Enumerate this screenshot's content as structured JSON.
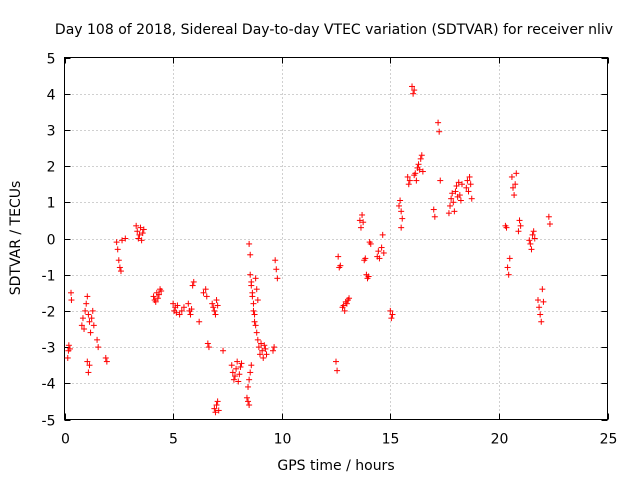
{
  "chart_data": {
    "type": "scatter",
    "title": "Day 108 of 2018, Sidereal Day-to-day VTEC variation (SDTVAR) for receiver nliv",
    "xlabel": "GPS time / hours",
    "ylabel": "SDTVAR / TECUs",
    "xlim": [
      0,
      25
    ],
    "ylim": [
      -5,
      5
    ],
    "grid": true,
    "marker": "+",
    "color": "#ff0000",
    "x_ticks": [
      "0",
      "5",
      "10",
      "15",
      "20",
      "25"
    ],
    "y_ticks": [
      "-5",
      "-4",
      "-3",
      "-2",
      "-1",
      "0",
      "1",
      "2",
      "3",
      "4",
      "5"
    ],
    "series": [
      {
        "name": "SDTVAR",
        "points": [
          [
            0.15,
            -3.3
          ],
          [
            0.18,
            -3.1
          ],
          [
            0.2,
            -2.95
          ],
          [
            0.25,
            -3.05
          ],
          [
            0.3,
            -1.5
          ],
          [
            0.32,
            -1.7
          ],
          [
            0.8,
            -2.4
          ],
          [
            0.85,
            -2.2
          ],
          [
            0.9,
            -2.5
          ],
          [
            0.95,
            -2.0
          ],
          [
            1.0,
            -1.8
          ],
          [
            1.05,
            -1.6
          ],
          [
            1.1,
            -2.1
          ],
          [
            1.15,
            -2.3
          ],
          [
            1.2,
            -2.6
          ],
          [
            1.25,
            -2.2
          ],
          [
            1.3,
            -2.0
          ],
          [
            1.35,
            -2.4
          ],
          [
            1.05,
            -3.4
          ],
          [
            1.1,
            -3.7
          ],
          [
            1.15,
            -3.5
          ],
          [
            1.5,
            -2.8
          ],
          [
            1.55,
            -3.0
          ],
          [
            1.9,
            -3.3
          ],
          [
            1.95,
            -3.4
          ],
          [
            2.4,
            -0.1
          ],
          [
            2.45,
            -0.3
          ],
          [
            2.5,
            -0.6
          ],
          [
            2.55,
            -0.8
          ],
          [
            2.6,
            -0.9
          ],
          [
            2.65,
            -0.05
          ],
          [
            2.8,
            0.0
          ],
          [
            3.3,
            0.35
          ],
          [
            3.35,
            0.2
          ],
          [
            3.4,
            0.0
          ],
          [
            3.45,
            0.1
          ],
          [
            3.5,
            0.3
          ],
          [
            3.55,
            -0.05
          ],
          [
            3.6,
            0.15
          ],
          [
            3.65,
            0.25
          ],
          [
            4.1,
            -1.6
          ],
          [
            4.15,
            -1.7
          ],
          [
            4.2,
            -1.75
          ],
          [
            4.25,
            -1.5
          ],
          [
            4.3,
            -1.65
          ],
          [
            4.35,
            -1.55
          ],
          [
            4.4,
            -1.4
          ],
          [
            4.45,
            -1.45
          ],
          [
            5.0,
            -1.8
          ],
          [
            5.05,
            -2.0
          ],
          [
            5.1,
            -1.9
          ],
          [
            5.15,
            -2.05
          ],
          [
            5.2,
            -1.85
          ],
          [
            5.3,
            -2.1
          ],
          [
            5.4,
            -2.0
          ],
          [
            5.5,
            -1.9
          ],
          [
            5.7,
            -1.8
          ],
          [
            5.75,
            -2.0
          ],
          [
            5.8,
            -2.1
          ],
          [
            5.85,
            -1.95
          ],
          [
            5.9,
            -1.3
          ],
          [
            5.95,
            -1.2
          ],
          [
            6.2,
            -2.3
          ],
          [
            6.4,
            -1.5
          ],
          [
            6.5,
            -1.4
          ],
          [
            6.55,
            -1.6
          ],
          [
            6.6,
            -2.9
          ],
          [
            6.65,
            -3.0
          ],
          [
            6.8,
            -1.8
          ],
          [
            6.85,
            -1.9
          ],
          [
            6.9,
            -2.0
          ],
          [
            6.95,
            -2.1
          ],
          [
            7.0,
            -1.7
          ],
          [
            7.05,
            -1.85
          ],
          [
            6.9,
            -4.7
          ],
          [
            6.95,
            -4.8
          ],
          [
            7.0,
            -4.6
          ],
          [
            7.05,
            -4.5
          ],
          [
            7.1,
            -4.75
          ],
          [
            7.3,
            -3.1
          ],
          [
            7.7,
            -3.5
          ],
          [
            7.75,
            -3.7
          ],
          [
            7.8,
            -3.9
          ],
          [
            7.85,
            -3.8
          ],
          [
            7.9,
            -3.6
          ],
          [
            7.95,
            -3.4
          ],
          [
            8.0,
            -3.95
          ],
          [
            8.05,
            -3.75
          ],
          [
            8.1,
            -3.55
          ],
          [
            8.15,
            -3.45
          ],
          [
            8.4,
            -4.4
          ],
          [
            8.45,
            -4.5
          ],
          [
            8.5,
            -4.6
          ],
          [
            8.45,
            -4.1
          ],
          [
            8.5,
            -3.9
          ],
          [
            8.55,
            -3.7
          ],
          [
            8.6,
            -3.5
          ],
          [
            8.5,
            -0.15
          ],
          [
            8.55,
            -0.45
          ],
          [
            8.55,
            -1.0
          ],
          [
            8.6,
            -1.2
          ],
          [
            8.65,
            -1.5
          ],
          [
            8.7,
            -1.8
          ],
          [
            8.75,
            -2.1
          ],
          [
            8.8,
            -2.4
          ],
          [
            8.85,
            -2.6
          ],
          [
            8.9,
            -2.8
          ],
          [
            8.95,
            -3.0
          ],
          [
            9.0,
            -3.2
          ],
          [
            9.05,
            -2.9
          ],
          [
            9.1,
            -3.1
          ],
          [
            9.15,
            -3.3
          ],
          [
            9.2,
            -2.95
          ],
          [
            9.25,
            -3.05
          ],
          [
            9.3,
            -3.2
          ],
          [
            8.6,
            -1.3
          ],
          [
            8.65,
            -1.6
          ],
          [
            8.7,
            -2.0
          ],
          [
            8.75,
            -2.3
          ],
          [
            8.8,
            -1.1
          ],
          [
            8.85,
            -1.4
          ],
          [
            8.9,
            -1.7
          ],
          [
            9.6,
            -3.1
          ],
          [
            9.65,
            -3.0
          ],
          [
            9.7,
            -0.6
          ],
          [
            9.75,
            -0.85
          ],
          [
            9.8,
            -1.1
          ],
          [
            12.5,
            -3.4
          ],
          [
            12.55,
            -3.65
          ],
          [
            12.6,
            -0.5
          ],
          [
            12.65,
            -0.8
          ],
          [
            12.7,
            -0.75
          ],
          [
            12.8,
            -1.9
          ],
          [
            12.85,
            -1.85
          ],
          [
            12.9,
            -2.0
          ],
          [
            12.95,
            -1.75
          ],
          [
            13.0,
            -1.8
          ],
          [
            13.05,
            -1.7
          ],
          [
            13.1,
            -1.65
          ],
          [
            13.6,
            0.5
          ],
          [
            13.65,
            0.3
          ],
          [
            13.7,
            0.65
          ],
          [
            13.75,
            0.45
          ],
          [
            13.8,
            -0.6
          ],
          [
            13.85,
            -0.55
          ],
          [
            13.9,
            -1.0
          ],
          [
            13.95,
            -1.1
          ],
          [
            14.0,
            -1.05
          ],
          [
            14.05,
            -0.1
          ],
          [
            14.1,
            -0.15
          ],
          [
            14.4,
            -0.5
          ],
          [
            14.45,
            -0.35
          ],
          [
            14.5,
            -0.55
          ],
          [
            14.6,
            -0.25
          ],
          [
            14.65,
            0.1
          ],
          [
            14.7,
            -0.4
          ],
          [
            15.0,
            -2.0
          ],
          [
            15.05,
            -2.2
          ],
          [
            15.1,
            -2.1
          ],
          [
            15.4,
            0.9
          ],
          [
            15.45,
            1.05
          ],
          [
            15.5,
            0.75
          ],
          [
            15.5,
            0.3
          ],
          [
            15.55,
            0.55
          ],
          [
            15.8,
            1.7
          ],
          [
            15.85,
            1.5
          ],
          [
            15.9,
            1.6
          ],
          [
            16.0,
            4.2
          ],
          [
            16.05,
            4.0
          ],
          [
            16.1,
            4.1
          ],
          [
            16.1,
            1.75
          ],
          [
            16.15,
            1.8
          ],
          [
            16.2,
            1.6
          ],
          [
            16.25,
            1.95
          ],
          [
            16.3,
            2.05
          ],
          [
            16.35,
            1.9
          ],
          [
            16.4,
            2.2
          ],
          [
            16.45,
            2.3
          ],
          [
            16.5,
            1.85
          ],
          [
            17.0,
            0.8
          ],
          [
            17.05,
            0.6
          ],
          [
            17.2,
            3.2
          ],
          [
            17.25,
            2.95
          ],
          [
            17.3,
            1.6
          ],
          [
            17.7,
            0.7
          ],
          [
            17.75,
            0.9
          ],
          [
            17.8,
            1.1
          ],
          [
            17.85,
            1.25
          ],
          [
            17.9,
            1.0
          ],
          [
            17.95,
            0.75
          ],
          [
            18.0,
            1.3
          ],
          [
            18.05,
            1.45
          ],
          [
            18.1,
            1.15
          ],
          [
            18.15,
            1.55
          ],
          [
            18.2,
            1.2
          ],
          [
            18.25,
            1.05
          ],
          [
            18.3,
            1.5
          ],
          [
            18.5,
            1.4
          ],
          [
            18.55,
            1.6
          ],
          [
            18.6,
            1.3
          ],
          [
            18.65,
            1.7
          ],
          [
            18.7,
            1.5
          ],
          [
            18.75,
            1.1
          ],
          [
            20.3,
            0.35
          ],
          [
            20.35,
            0.3
          ],
          [
            20.4,
            -0.8
          ],
          [
            20.45,
            -1.0
          ],
          [
            20.5,
            -0.55
          ],
          [
            20.6,
            1.7
          ],
          [
            20.65,
            1.4
          ],
          [
            20.7,
            1.2
          ],
          [
            20.75,
            1.5
          ],
          [
            20.8,
            1.8
          ],
          [
            20.9,
            0.2
          ],
          [
            20.95,
            0.5
          ],
          [
            21.0,
            0.35
          ],
          [
            21.4,
            -0.05
          ],
          [
            21.45,
            -0.15
          ],
          [
            21.5,
            -0.3
          ],
          [
            21.55,
            0.1
          ],
          [
            21.6,
            0.2
          ],
          [
            21.65,
            0.0
          ],
          [
            21.8,
            -1.7
          ],
          [
            21.85,
            -1.9
          ],
          [
            21.9,
            -2.1
          ],
          [
            21.95,
            -2.3
          ],
          [
            22.0,
            -1.4
          ],
          [
            22.05,
            -1.75
          ],
          [
            22.3,
            0.6
          ],
          [
            22.35,
            0.4
          ]
        ]
      }
    ]
  }
}
